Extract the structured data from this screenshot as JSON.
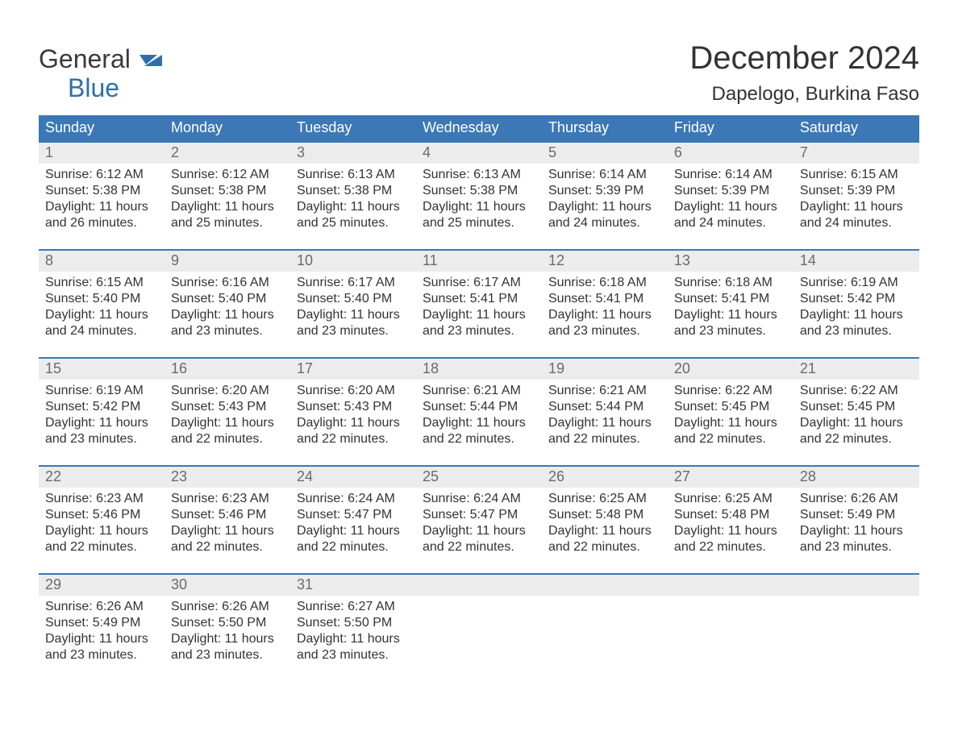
{
  "brand": {
    "name_line1": "General",
    "name_line2": "Blue",
    "accent_color": "#2f6fa9",
    "text_color": "#3a3a3a"
  },
  "header": {
    "month_year": "December 2024",
    "location": "Dapelogo, Burkina Faso"
  },
  "calendar": {
    "type": "calendar-table",
    "header_bg": "#3b78b5",
    "header_fg": "#ffffff",
    "daynum_bg": "#ececec",
    "daynum_fg": "#6b6b6b",
    "row_border_color": "#3b78b5",
    "body_fg": "#333333",
    "body_fontsize": 16,
    "daynum_fontsize": 18,
    "weekday_fontsize": 18,
    "weekdays": [
      "Sunday",
      "Monday",
      "Tuesday",
      "Wednesday",
      "Thursday",
      "Friday",
      "Saturday"
    ],
    "weeks": [
      [
        {
          "n": "1",
          "sunrise": "Sunrise: 6:12 AM",
          "sunset": "Sunset: 5:38 PM",
          "day1": "Daylight: 11 hours",
          "day2": "and 26 minutes."
        },
        {
          "n": "2",
          "sunrise": "Sunrise: 6:12 AM",
          "sunset": "Sunset: 5:38 PM",
          "day1": "Daylight: 11 hours",
          "day2": "and 25 minutes."
        },
        {
          "n": "3",
          "sunrise": "Sunrise: 6:13 AM",
          "sunset": "Sunset: 5:38 PM",
          "day1": "Daylight: 11 hours",
          "day2": "and 25 minutes."
        },
        {
          "n": "4",
          "sunrise": "Sunrise: 6:13 AM",
          "sunset": "Sunset: 5:38 PM",
          "day1": "Daylight: 11 hours",
          "day2": "and 25 minutes."
        },
        {
          "n": "5",
          "sunrise": "Sunrise: 6:14 AM",
          "sunset": "Sunset: 5:39 PM",
          "day1": "Daylight: 11 hours",
          "day2": "and 24 minutes."
        },
        {
          "n": "6",
          "sunrise": "Sunrise: 6:14 AM",
          "sunset": "Sunset: 5:39 PM",
          "day1": "Daylight: 11 hours",
          "day2": "and 24 minutes."
        },
        {
          "n": "7",
          "sunrise": "Sunrise: 6:15 AM",
          "sunset": "Sunset: 5:39 PM",
          "day1": "Daylight: 11 hours",
          "day2": "and 24 minutes."
        }
      ],
      [
        {
          "n": "8",
          "sunrise": "Sunrise: 6:15 AM",
          "sunset": "Sunset: 5:40 PM",
          "day1": "Daylight: 11 hours",
          "day2": "and 24 minutes."
        },
        {
          "n": "9",
          "sunrise": "Sunrise: 6:16 AM",
          "sunset": "Sunset: 5:40 PM",
          "day1": "Daylight: 11 hours",
          "day2": "and 23 minutes."
        },
        {
          "n": "10",
          "sunrise": "Sunrise: 6:17 AM",
          "sunset": "Sunset: 5:40 PM",
          "day1": "Daylight: 11 hours",
          "day2": "and 23 minutes."
        },
        {
          "n": "11",
          "sunrise": "Sunrise: 6:17 AM",
          "sunset": "Sunset: 5:41 PM",
          "day1": "Daylight: 11 hours",
          "day2": "and 23 minutes."
        },
        {
          "n": "12",
          "sunrise": "Sunrise: 6:18 AM",
          "sunset": "Sunset: 5:41 PM",
          "day1": "Daylight: 11 hours",
          "day2": "and 23 minutes."
        },
        {
          "n": "13",
          "sunrise": "Sunrise: 6:18 AM",
          "sunset": "Sunset: 5:41 PM",
          "day1": "Daylight: 11 hours",
          "day2": "and 23 minutes."
        },
        {
          "n": "14",
          "sunrise": "Sunrise: 6:19 AM",
          "sunset": "Sunset: 5:42 PM",
          "day1": "Daylight: 11 hours",
          "day2": "and 23 minutes."
        }
      ],
      [
        {
          "n": "15",
          "sunrise": "Sunrise: 6:19 AM",
          "sunset": "Sunset: 5:42 PM",
          "day1": "Daylight: 11 hours",
          "day2": "and 23 minutes."
        },
        {
          "n": "16",
          "sunrise": "Sunrise: 6:20 AM",
          "sunset": "Sunset: 5:43 PM",
          "day1": "Daylight: 11 hours",
          "day2": "and 22 minutes."
        },
        {
          "n": "17",
          "sunrise": "Sunrise: 6:20 AM",
          "sunset": "Sunset: 5:43 PM",
          "day1": "Daylight: 11 hours",
          "day2": "and 22 minutes."
        },
        {
          "n": "18",
          "sunrise": "Sunrise: 6:21 AM",
          "sunset": "Sunset: 5:44 PM",
          "day1": "Daylight: 11 hours",
          "day2": "and 22 minutes."
        },
        {
          "n": "19",
          "sunrise": "Sunrise: 6:21 AM",
          "sunset": "Sunset: 5:44 PM",
          "day1": "Daylight: 11 hours",
          "day2": "and 22 minutes."
        },
        {
          "n": "20",
          "sunrise": "Sunrise: 6:22 AM",
          "sunset": "Sunset: 5:45 PM",
          "day1": "Daylight: 11 hours",
          "day2": "and 22 minutes."
        },
        {
          "n": "21",
          "sunrise": "Sunrise: 6:22 AM",
          "sunset": "Sunset: 5:45 PM",
          "day1": "Daylight: 11 hours",
          "day2": "and 22 minutes."
        }
      ],
      [
        {
          "n": "22",
          "sunrise": "Sunrise: 6:23 AM",
          "sunset": "Sunset: 5:46 PM",
          "day1": "Daylight: 11 hours",
          "day2": "and 22 minutes."
        },
        {
          "n": "23",
          "sunrise": "Sunrise: 6:23 AM",
          "sunset": "Sunset: 5:46 PM",
          "day1": "Daylight: 11 hours",
          "day2": "and 22 minutes."
        },
        {
          "n": "24",
          "sunrise": "Sunrise: 6:24 AM",
          "sunset": "Sunset: 5:47 PM",
          "day1": "Daylight: 11 hours",
          "day2": "and 22 minutes."
        },
        {
          "n": "25",
          "sunrise": "Sunrise: 6:24 AM",
          "sunset": "Sunset: 5:47 PM",
          "day1": "Daylight: 11 hours",
          "day2": "and 22 minutes."
        },
        {
          "n": "26",
          "sunrise": "Sunrise: 6:25 AM",
          "sunset": "Sunset: 5:48 PM",
          "day1": "Daylight: 11 hours",
          "day2": "and 22 minutes."
        },
        {
          "n": "27",
          "sunrise": "Sunrise: 6:25 AM",
          "sunset": "Sunset: 5:48 PM",
          "day1": "Daylight: 11 hours",
          "day2": "and 22 minutes."
        },
        {
          "n": "28",
          "sunrise": "Sunrise: 6:26 AM",
          "sunset": "Sunset: 5:49 PM",
          "day1": "Daylight: 11 hours",
          "day2": "and 23 minutes."
        }
      ],
      [
        {
          "n": "29",
          "sunrise": "Sunrise: 6:26 AM",
          "sunset": "Sunset: 5:49 PM",
          "day1": "Daylight: 11 hours",
          "day2": "and 23 minutes."
        },
        {
          "n": "30",
          "sunrise": "Sunrise: 6:26 AM",
          "sunset": "Sunset: 5:50 PM",
          "day1": "Daylight: 11 hours",
          "day2": "and 23 minutes."
        },
        {
          "n": "31",
          "sunrise": "Sunrise: 6:27 AM",
          "sunset": "Sunset: 5:50 PM",
          "day1": "Daylight: 11 hours",
          "day2": "and 23 minutes."
        },
        null,
        null,
        null,
        null
      ]
    ]
  }
}
